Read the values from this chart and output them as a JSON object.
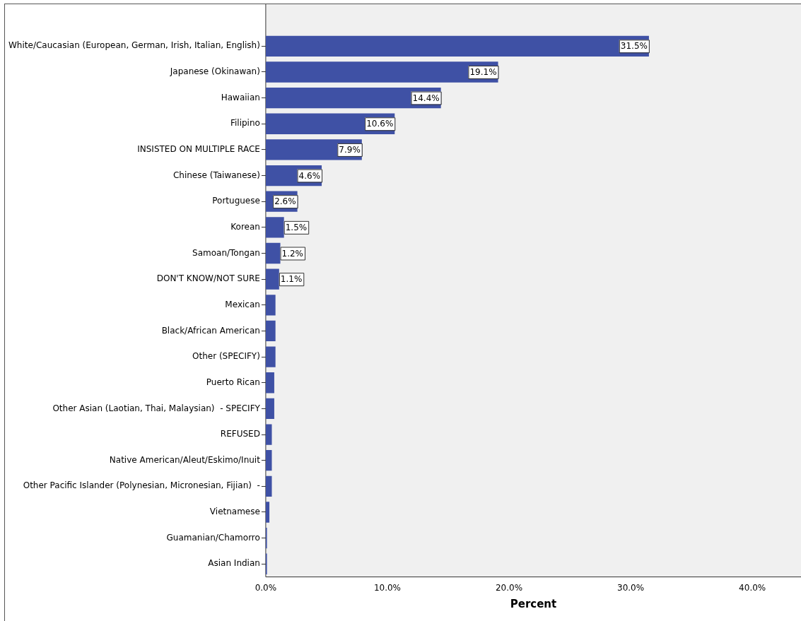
{
  "chart_data": {
    "type": "bar",
    "orientation": "horizontal",
    "xlabel": "Percent",
    "categories": [
      "White/Caucasian (European, German, Irish, Italian, English)",
      "Japanese (Okinawan)",
      "Hawaiian",
      "Filipino",
      "INSISTED ON MULTIPLE RACE",
      "Chinese (Taiwanese)",
      "Portuguese",
      "Korean",
      "Samoan/Tongan",
      "DON'T KNOW/NOT SURE",
      "Mexican",
      "Black/African American",
      "Other (SPECIFY)",
      "Puerto Rican",
      "Other Asian (Laotian, Thai, Malaysian)  - SPECIFY",
      "REFUSED",
      "Native American/Aleut/Eskimo/Inuit",
      "Other Pacific Islander (Polynesian, Micronesian, Fijian)  -",
      "Vietnamese",
      "Guamanian/Chamorro",
      "Asian Indian"
    ],
    "values": [
      31.5,
      19.1,
      14.4,
      10.6,
      7.9,
      4.6,
      2.6,
      1.5,
      1.2,
      1.1,
      0.8,
      0.8,
      0.8,
      0.7,
      0.7,
      0.5,
      0.5,
      0.5,
      0.3,
      0.1,
      0.1
    ],
    "value_labels": [
      "31.5%",
      "19.1%",
      "14.4%",
      "10.6%",
      "7.9%",
      "4.6%",
      "2.6%",
      "1.5%",
      "1.2%",
      "1.1%",
      null,
      null,
      null,
      null,
      null,
      null,
      null,
      null,
      null,
      null,
      null
    ],
    "color": "#3f51a5",
    "xlim": [
      0,
      44
    ],
    "xticks": [
      {
        "value": 0,
        "label": "0.0%"
      },
      {
        "value": 10,
        "label": "10.0%"
      },
      {
        "value": 20,
        "label": "20.0%"
      },
      {
        "value": 30,
        "label": "30.0%"
      },
      {
        "value": 40,
        "label": "40.0%"
      }
    ],
    "grid": false,
    "legend": false
  }
}
